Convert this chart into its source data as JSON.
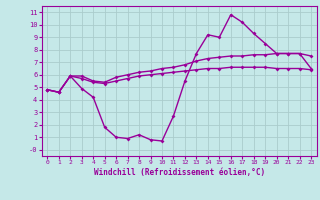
{
  "title": "",
  "xlabel": "Windchill (Refroidissement éolien,°C)",
  "xlim": [
    -0.5,
    23.5
  ],
  "ylim": [
    -0.5,
    11.5
  ],
  "xticks": [
    0,
    1,
    2,
    3,
    4,
    5,
    6,
    7,
    8,
    9,
    10,
    11,
    12,
    13,
    14,
    15,
    16,
    17,
    18,
    19,
    20,
    21,
    22,
    23
  ],
  "yticks": [
    0,
    1,
    2,
    3,
    4,
    5,
    6,
    7,
    8,
    9,
    10,
    11
  ],
  "ytick_labels": [
    "-0",
    "1",
    "2",
    "3",
    "4",
    "5",
    "6",
    "7",
    "8",
    "9",
    "10",
    "11"
  ],
  "bg_color": "#c5e8e8",
  "grid_color": "#aacccc",
  "line_color": "#990099",
  "marker": "D",
  "marker_size": 2,
  "line_width": 1.0,
  "curve1_x": [
    0,
    1,
    2,
    3,
    4,
    5,
    6,
    7,
    8,
    9,
    10,
    11,
    12,
    13,
    14,
    15,
    16,
    17,
    18,
    19,
    20,
    21,
    22,
    23
  ],
  "curve1_y": [
    4.8,
    4.6,
    5.9,
    4.9,
    4.2,
    1.8,
    1.0,
    0.9,
    1.2,
    0.8,
    0.7,
    2.7,
    5.5,
    7.7,
    9.2,
    9.0,
    10.8,
    10.2,
    9.3,
    8.5,
    7.7,
    7.7,
    7.7,
    6.5
  ],
  "curve2_x": [
    0,
    1,
    2,
    3,
    4,
    5,
    6,
    7,
    8,
    9,
    10,
    11,
    12,
    13,
    14,
    15,
    16,
    17,
    18,
    19,
    20,
    21,
    22,
    23
  ],
  "curve2_y": [
    4.8,
    4.6,
    5.9,
    5.9,
    5.5,
    5.4,
    5.8,
    6.0,
    6.2,
    6.3,
    6.5,
    6.6,
    6.8,
    7.1,
    7.3,
    7.4,
    7.5,
    7.5,
    7.6,
    7.6,
    7.7,
    7.7,
    7.7,
    7.5
  ],
  "curve3_x": [
    0,
    1,
    2,
    3,
    4,
    5,
    6,
    7,
    8,
    9,
    10,
    11,
    12,
    13,
    14,
    15,
    16,
    17,
    18,
    19,
    20,
    21,
    22,
    23
  ],
  "curve3_y": [
    4.8,
    4.6,
    5.9,
    5.7,
    5.4,
    5.3,
    5.5,
    5.7,
    5.9,
    6.0,
    6.1,
    6.2,
    6.3,
    6.4,
    6.5,
    6.5,
    6.6,
    6.6,
    6.6,
    6.6,
    6.5,
    6.5,
    6.5,
    6.4
  ]
}
